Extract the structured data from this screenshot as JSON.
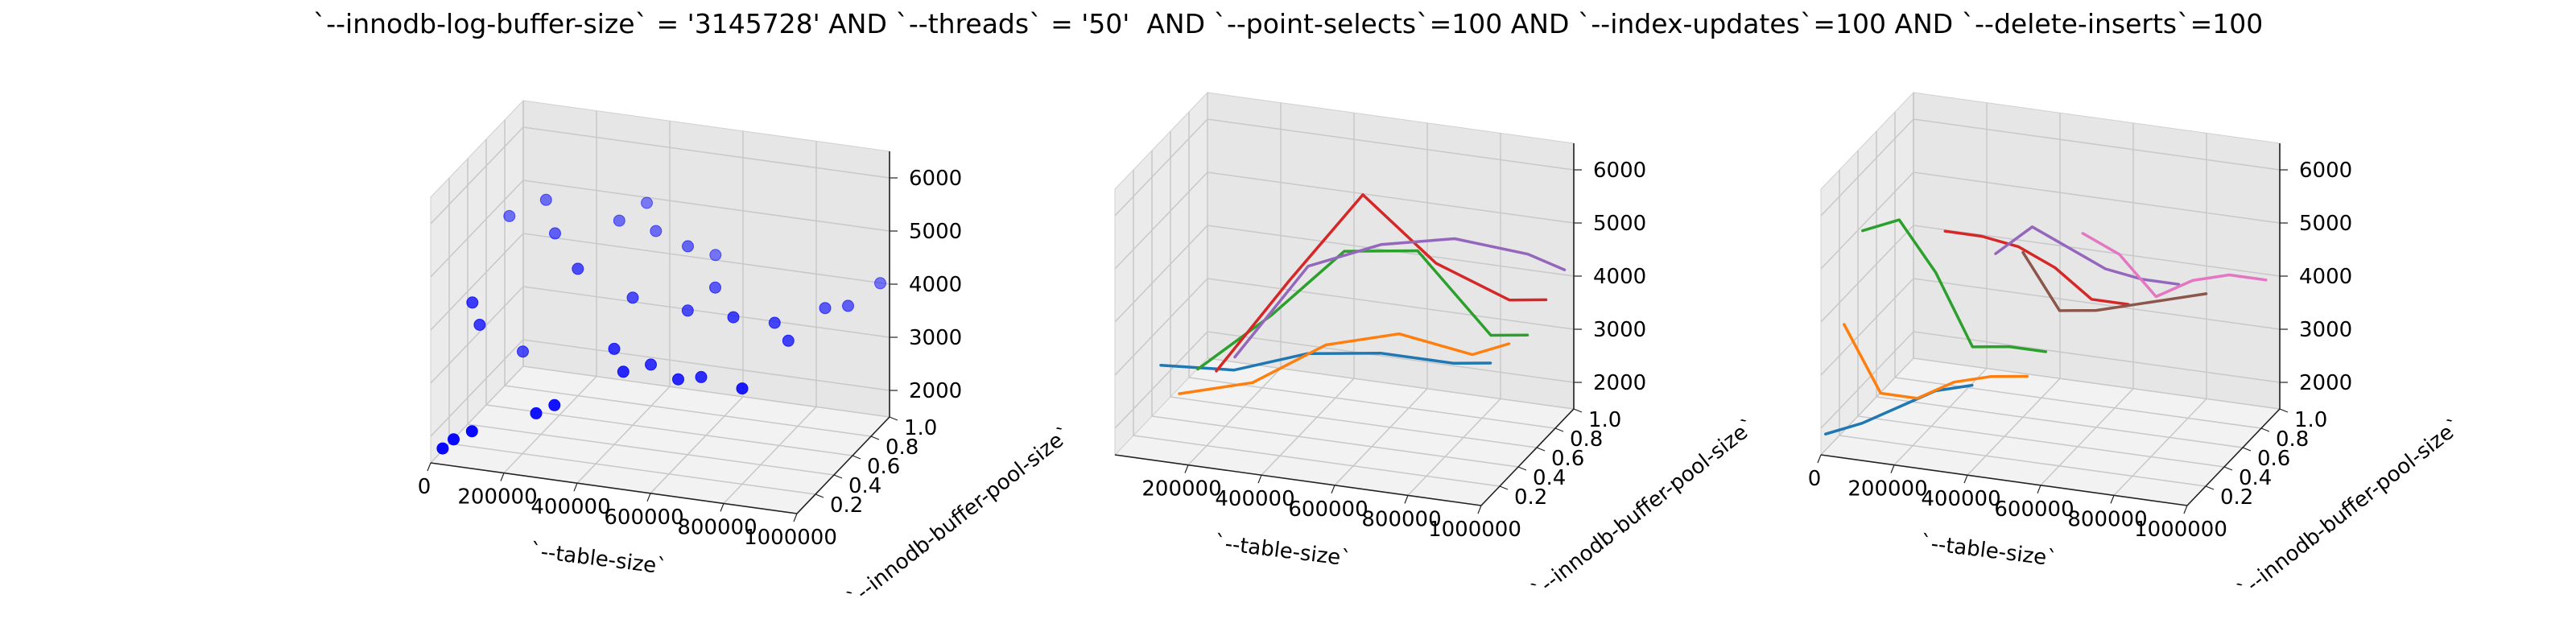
{
  "figure": {
    "title": "`--innodb-log-buffer-size` = '3145728' AND `--threads` = '50'  AND `--point-selects`=100 AND `--index-updates`=100 AND `--delete-inserts`=100"
  },
  "chart_data": [
    {
      "type": "scatter3d",
      "xlabel": "`--table-size`",
      "ylabel": "`--innodb-buffer-pool-size`",
      "zlabel": "",
      "x_ticks": [
        0,
        200000,
        400000,
        600000,
        800000,
        1000000
      ],
      "y_ticks": [
        0.2,
        0.4,
        0.6,
        0.8,
        1.0
      ],
      "z_ticks": [
        2000,
        3000,
        4000,
        5000,
        6000
      ],
      "xlim": [
        0,
        1000000
      ],
      "ylim": [
        0,
        1.0
      ],
      "zlim": [
        1500,
        6500
      ],
      "grid": true,
      "colors": {
        "points": "#0000ff"
      },
      "points": [
        [
          20000,
          0.05,
          1700
        ],
        [
          50000,
          0.05,
          1900
        ],
        [
          100000,
          0.05,
          2100
        ],
        [
          0,
          0.45,
          3700
        ],
        [
          20000,
          0.45,
          3300
        ],
        [
          100000,
          0.6,
          2600
        ],
        [
          250000,
          0.15,
          2400
        ],
        [
          300000,
          0.15,
          2600
        ],
        [
          0,
          0.85,
          4600
        ],
        [
          100000,
          0.85,
          5000
        ],
        [
          150000,
          0.75,
          4600
        ],
        [
          300000,
          0.85,
          4800
        ],
        [
          350000,
          0.95,
          5000
        ],
        [
          400000,
          0.85,
          4700
        ],
        [
          250000,
          0.6,
          4300
        ],
        [
          400000,
          0.4,
          3300
        ],
        [
          500000,
          0.4,
          3100
        ],
        [
          450000,
          0.3,
          3100
        ],
        [
          400000,
          0.6,
          3900
        ],
        [
          550000,
          0.6,
          3800
        ],
        [
          600000,
          0.7,
          4100
        ],
        [
          600000,
          0.3,
          3100
        ],
        [
          650000,
          0.35,
          3100
        ],
        [
          500000,
          0.8,
          4600
        ],
        [
          550000,
          0.9,
          4300
        ],
        [
          700000,
          0.5,
          4000
        ],
        [
          800000,
          0.55,
          3900
        ],
        [
          850000,
          0.5,
          3700
        ],
        [
          800000,
          0.2,
          3300
        ],
        [
          900000,
          0.7,
          4000
        ],
        [
          950000,
          0.75,
          4000
        ],
        [
          1000000,
          0.9,
          4200
        ]
      ]
    },
    {
      "type": "line3d",
      "xlabel": "`--table-size`",
      "ylabel": "`--innodb-buffer-pool-size`",
      "zlabel": "",
      "x_ticks": [
        200000,
        400000,
        600000,
        800000,
        1000000
      ],
      "y_ticks": [
        0.2,
        0.4,
        0.6,
        0.8,
        1.0
      ],
      "z_ticks": [
        2000,
        3000,
        4000,
        5000,
        6000
      ],
      "xlim": [
        0,
        1000000
      ],
      "ylim": [
        0,
        1.0
      ],
      "zlim": [
        1500,
        6500
      ],
      "grid": true,
      "series": [
        {
          "color": "#1f77b4",
          "x": [
            100000,
            300000,
            500000,
            700000,
            900000,
            1000000
          ],
          "y": [
            0.1,
            0.1,
            0.1,
            0.1,
            0.1,
            0.1
          ],
          "z": [
            3100,
            3200,
            3700,
            3900,
            3900,
            4000
          ]
        },
        {
          "color": "#ff7f0e",
          "x": [
            100000,
            300000,
            500000,
            700000,
            900000,
            1000000
          ],
          "y": [
            0.3,
            0.3,
            0.3,
            0.3,
            0.3,
            0.3
          ],
          "z": [
            2200,
            2600,
            3500,
            3900,
            3700,
            4000
          ]
        },
        {
          "color": "#2ca02c",
          "x": [
            100000,
            300000,
            500000,
            700000,
            900000,
            1000000
          ],
          "y": [
            0.5,
            0.5,
            0.5,
            0.5,
            0.5,
            0.5
          ],
          "z": [
            2300,
            3500,
            4900,
            5100,
            3700,
            3800
          ]
        },
        {
          "color": "#d62728",
          "x": [
            100000,
            300000,
            500000,
            700000,
            900000,
            1000000
          ],
          "y": [
            0.7,
            0.7,
            0.7,
            0.7,
            0.7,
            0.7
          ],
          "z": [
            1900,
            3800,
            5600,
            4500,
            4000,
            4100
          ]
        },
        {
          "color": "#9467bd",
          "x": [
            100000,
            300000,
            500000,
            700000,
            900000,
            1000000
          ],
          "y": [
            0.9,
            0.9,
            0.9,
            0.9,
            0.9,
            0.9
          ],
          "z": [
            1800,
            3700,
            4300,
            4600,
            4500,
            4300
          ]
        }
      ]
    },
    {
      "type": "line3d",
      "xlabel": "`--table-size`",
      "ylabel": "`--innodb-buffer-pool-size`",
      "zlabel": "",
      "x_ticks": [
        0,
        200000,
        400000,
        600000,
        800000,
        1000000
      ],
      "y_ticks": [
        0.2,
        0.4,
        0.6,
        0.8,
        1.0
      ],
      "z_ticks": [
        2000,
        3000,
        4000,
        5000,
        6000
      ],
      "xlim": [
        0,
        1000000
      ],
      "ylim": [
        0,
        1.0
      ],
      "zlim": [
        1500,
        6500
      ],
      "grid": true,
      "series": [
        {
          "color": "#1f77b4",
          "x": [
            0,
            100000,
            200000,
            300000,
            400000
          ],
          "y": [
            0.05,
            0.05,
            0.05,
            0.05,
            0.05
          ],
          "z": [
            1800,
            2100,
            2500,
            2900,
            3100
          ]
        },
        {
          "color": "#ff7f0e",
          "x": [
            0,
            100000,
            200000,
            300000,
            400000,
            500000
          ],
          "y": [
            0.25,
            0.25,
            0.25,
            0.25,
            0.25,
            0.25
          ],
          "z": [
            3500,
            2300,
            2300,
            2700,
            2900,
            3000
          ]
        },
        {
          "color": "#2ca02c",
          "x": [
            0,
            100000,
            200000,
            300000,
            400000,
            500000
          ],
          "y": [
            0.45,
            0.45,
            0.45,
            0.45,
            0.45,
            0.45
          ],
          "z": [
            4900,
            5200,
            4300,
            3000,
            3100,
            3100
          ]
        },
        {
          "color": "#d62728",
          "x": [
            200000,
            300000,
            400000,
            500000,
            600000,
            700000
          ],
          "y": [
            0.55,
            0.55,
            0.55,
            0.55,
            0.55,
            0.55
          ],
          "z": [
            4900,
            4900,
            4800,
            4500,
            4000,
            4000
          ]
        },
        {
          "color": "#9467bd",
          "x": [
            300000,
            400000,
            500000,
            600000,
            700000,
            800000
          ],
          "y": [
            0.7,
            0.7,
            0.7,
            0.7,
            0.7,
            0.7
          ],
          "z": [
            4300,
            4900,
            4600,
            4300,
            4200,
            4200
          ]
        },
        {
          "color": "#8c564b",
          "x": [
            400000,
            500000,
            600000,
            700000,
            800000,
            900000
          ],
          "y": [
            0.6,
            0.6,
            0.6,
            0.6,
            0.6,
            0.6
          ],
          "z": [
            4600,
            3600,
            3700,
            3900,
            4100,
            4300
          ]
        },
        {
          "color": "#e377c2",
          "x": [
            500000,
            600000,
            700000,
            800000,
            900000,
            1000000
          ],
          "y": [
            0.85,
            0.85,
            0.85,
            0.85,
            0.85,
            0.85
          ],
          "z": [
            4600,
            4300,
            3600,
            4000,
            4200,
            4200
          ]
        }
      ]
    }
  ]
}
